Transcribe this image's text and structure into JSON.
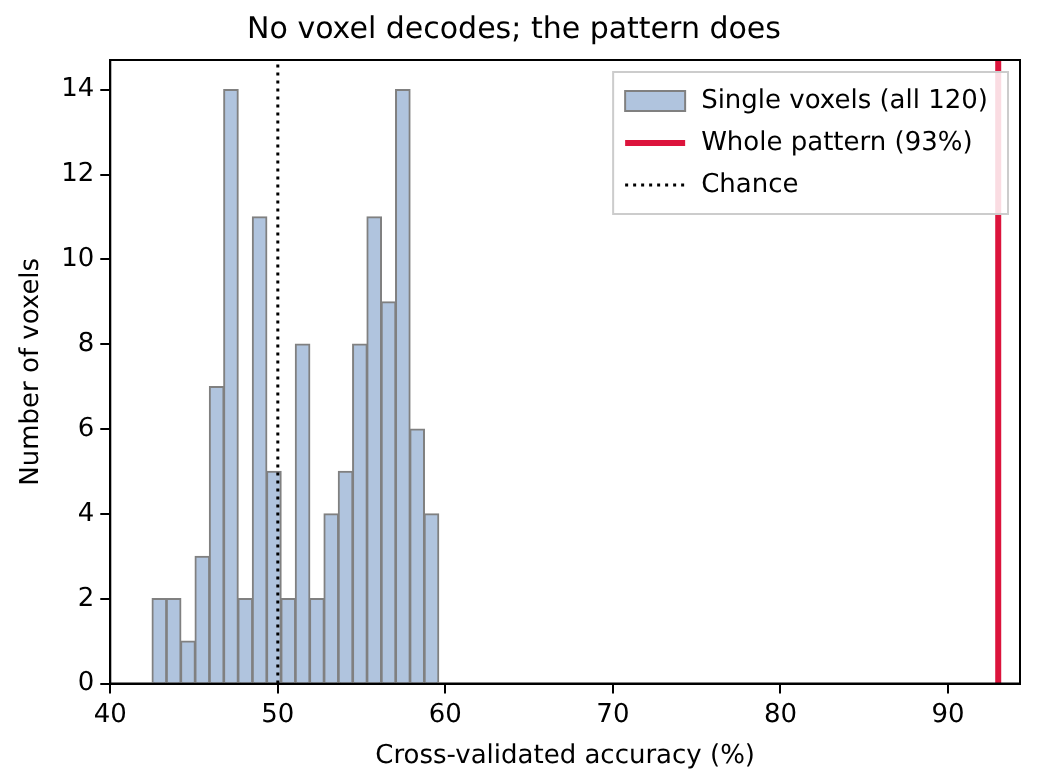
{
  "chart_data": {
    "type": "histogram",
    "title": "No voxel decodes; the pattern does",
    "xlabel": "Cross-validated accuracy (%)",
    "ylabel": "Number of voxels",
    "bins": [
      42.5,
      43.355,
      44.21,
      45.065,
      45.92,
      46.775,
      47.63,
      48.485,
      49.34,
      50.195,
      51.05,
      51.905,
      52.76,
      53.615,
      54.47,
      55.325,
      56.18,
      57.035,
      57.89,
      58.745,
      59.6
    ],
    "series": [
      {
        "name": "Single voxels (all 120)",
        "color": "#b0c4de",
        "values": [
          2,
          2,
          1,
          3,
          7,
          14,
          2,
          11,
          5,
          2,
          8,
          2,
          4,
          5,
          8,
          11,
          9,
          14,
          6,
          4
        ]
      }
    ],
    "ref_lines": [
      {
        "axis": "x",
        "value": 93,
        "label": "Whole pattern (93%)",
        "color": "#dc143c",
        "line_style": "solid"
      },
      {
        "axis": "x",
        "value": 50,
        "label": "Chance",
        "color": "#000000",
        "line_style": "dotted"
      }
    ],
    "xlim": [
      40,
      94.3
    ],
    "xticks": [
      40,
      50,
      60,
      70,
      80,
      90
    ],
    "ylim": [
      0,
      14.7
    ],
    "yticks": [
      0,
      2,
      4,
      6,
      8,
      10,
      12,
      14
    ],
    "grid": false,
    "legend": "top right"
  }
}
